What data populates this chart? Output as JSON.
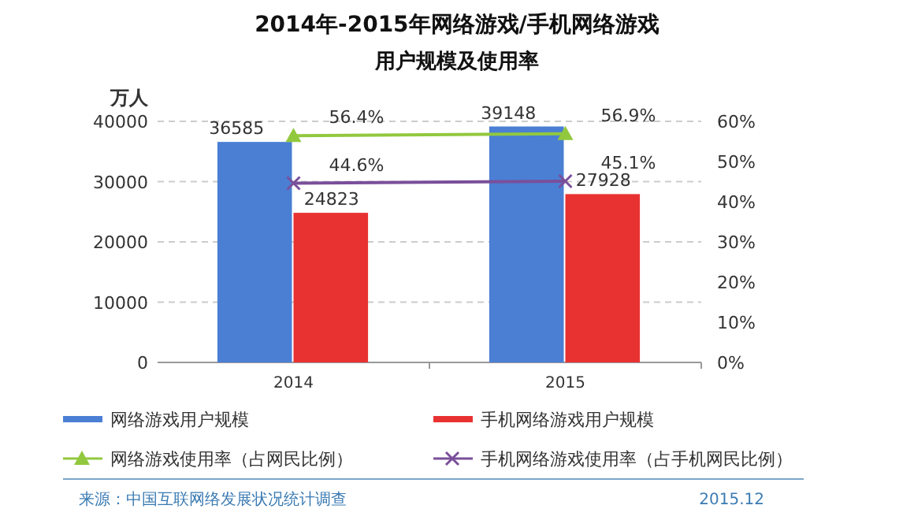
{
  "chart_data": {
    "type": "bar",
    "title": "2014年-2015年网络游戏/手机网络游戏",
    "subtitle": "用户规模及使用率",
    "ylabel": "万人",
    "categories": [
      "2014",
      "2015"
    ],
    "series": [
      {
        "name": "网络游戏用户规模",
        "color": "#4a7fd4",
        "values": [
          36585,
          39148
        ]
      },
      {
        "name": "手机网络游戏用户规模",
        "color": "#e83232",
        "values": [
          24823,
          27928
        ]
      },
      {
        "name": "网络游戏使用率（占网民比例）",
        "type": "line",
        "axis": "y2",
        "marker": "triangle",
        "color": "#92c83e",
        "values": [
          56.4,
          56.9
        ],
        "value_labels": [
          "56.4%",
          "56.9%"
        ]
      },
      {
        "name": "手机网络游戏使用率（占手机网民比例）",
        "type": "line",
        "axis": "y2",
        "marker": "cross",
        "color": "#7a4f9a",
        "values": [
          44.6,
          45.1
        ],
        "value_labels": [
          "44.6%",
          "45.1%"
        ]
      }
    ],
    "ylim": [
      0,
      40000
    ],
    "yticks": [
      0,
      10000,
      20000,
      30000,
      40000
    ],
    "y2lim": [
      0,
      60
    ],
    "y2ticks": [
      {
        "value": 0,
        "label": "0%"
      },
      {
        "value": 10,
        "label": "10%"
      },
      {
        "value": 20,
        "label": "20%"
      },
      {
        "value": 30,
        "label": "30%"
      },
      {
        "value": 40,
        "label": "40%"
      },
      {
        "value": 50,
        "label": "50%"
      },
      {
        "value": 60,
        "label": "60%"
      }
    ],
    "grid": "y",
    "legend": "bottom",
    "data_labels": true,
    "annotations": [
      "来源：中国互联网络发展状况统计调查",
      "2015.12"
    ]
  }
}
